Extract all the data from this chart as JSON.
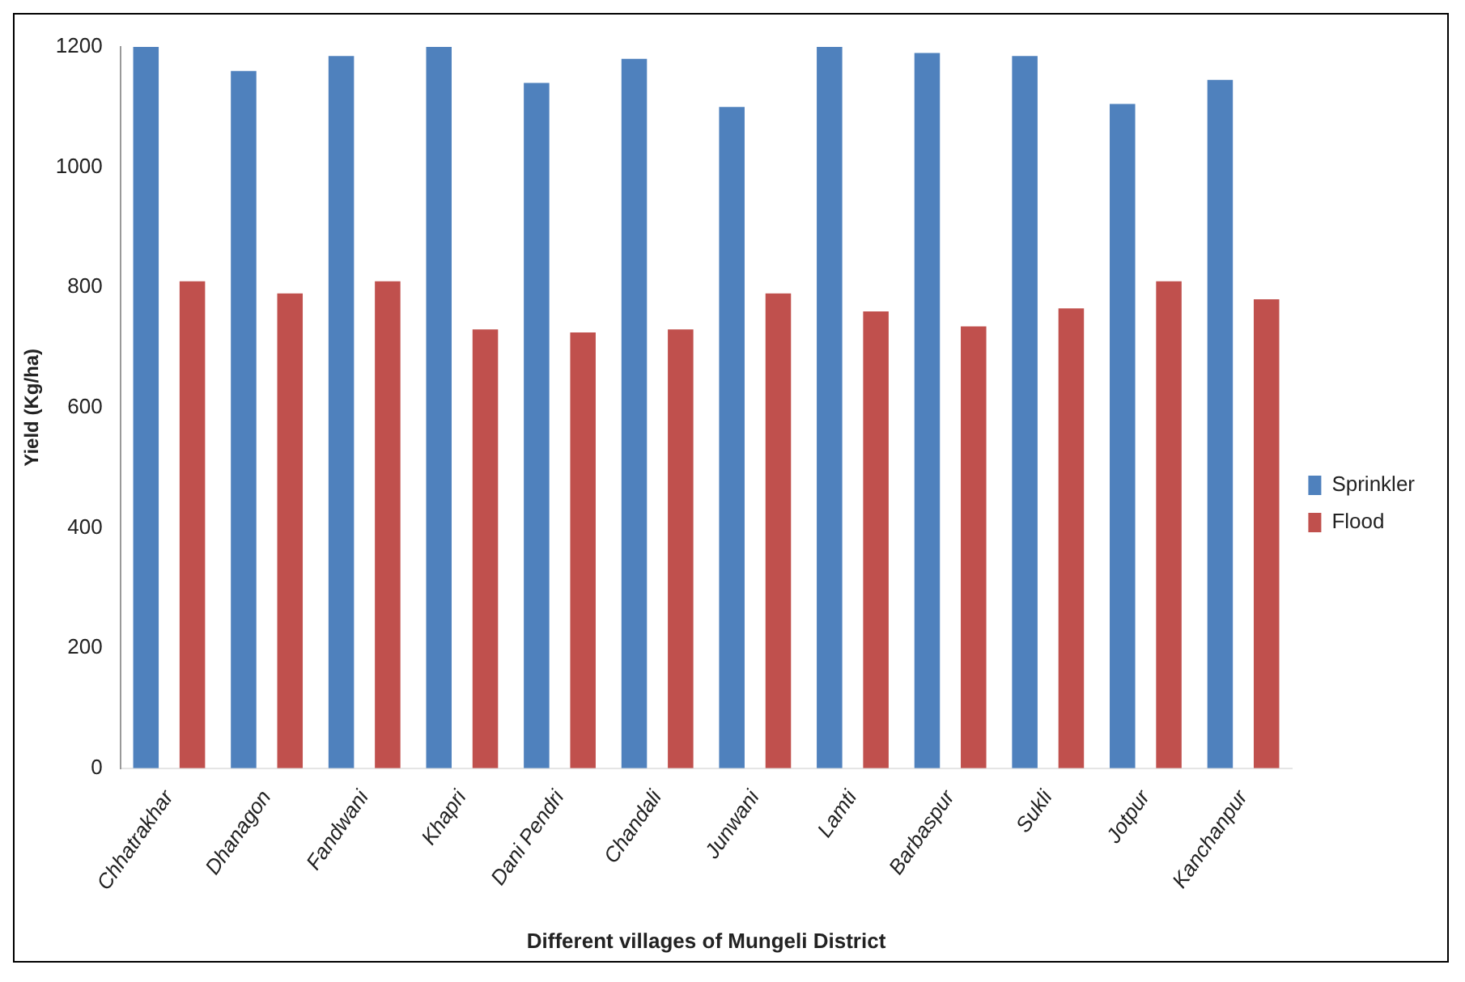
{
  "chart_data": {
    "type": "bar",
    "xlabel": "Different villages of Mungeli District",
    "ylabel": "Yield (Kg/ha)",
    "categories": [
      "Chhatrakhar",
      "Dhanagon",
      "Fandwani",
      "Khapri",
      "Dani Pendri",
      "Chandali",
      "Junwani",
      "Lamti",
      "Barbaspur",
      "Sukli",
      "Jotpur",
      "Kanchanpur"
    ],
    "series": [
      {
        "name": "Sprinkler",
        "color": "#4f81bd",
        "values": [
          1200,
          1160,
          1185,
          1200,
          1140,
          1180,
          1100,
          1200,
          1190,
          1185,
          1105,
          1145
        ]
      },
      {
        "name": "Flood",
        "color": "#c0504d",
        "values": [
          810,
          790,
          810,
          730,
          725,
          730,
          790,
          760,
          735,
          765,
          810,
          780
        ]
      }
    ],
    "ylim": [
      0,
      1200
    ],
    "yticks": [
      0,
      200,
      400,
      600,
      800,
      1000,
      1200
    ],
    "grid": false,
    "legend": "right"
  }
}
